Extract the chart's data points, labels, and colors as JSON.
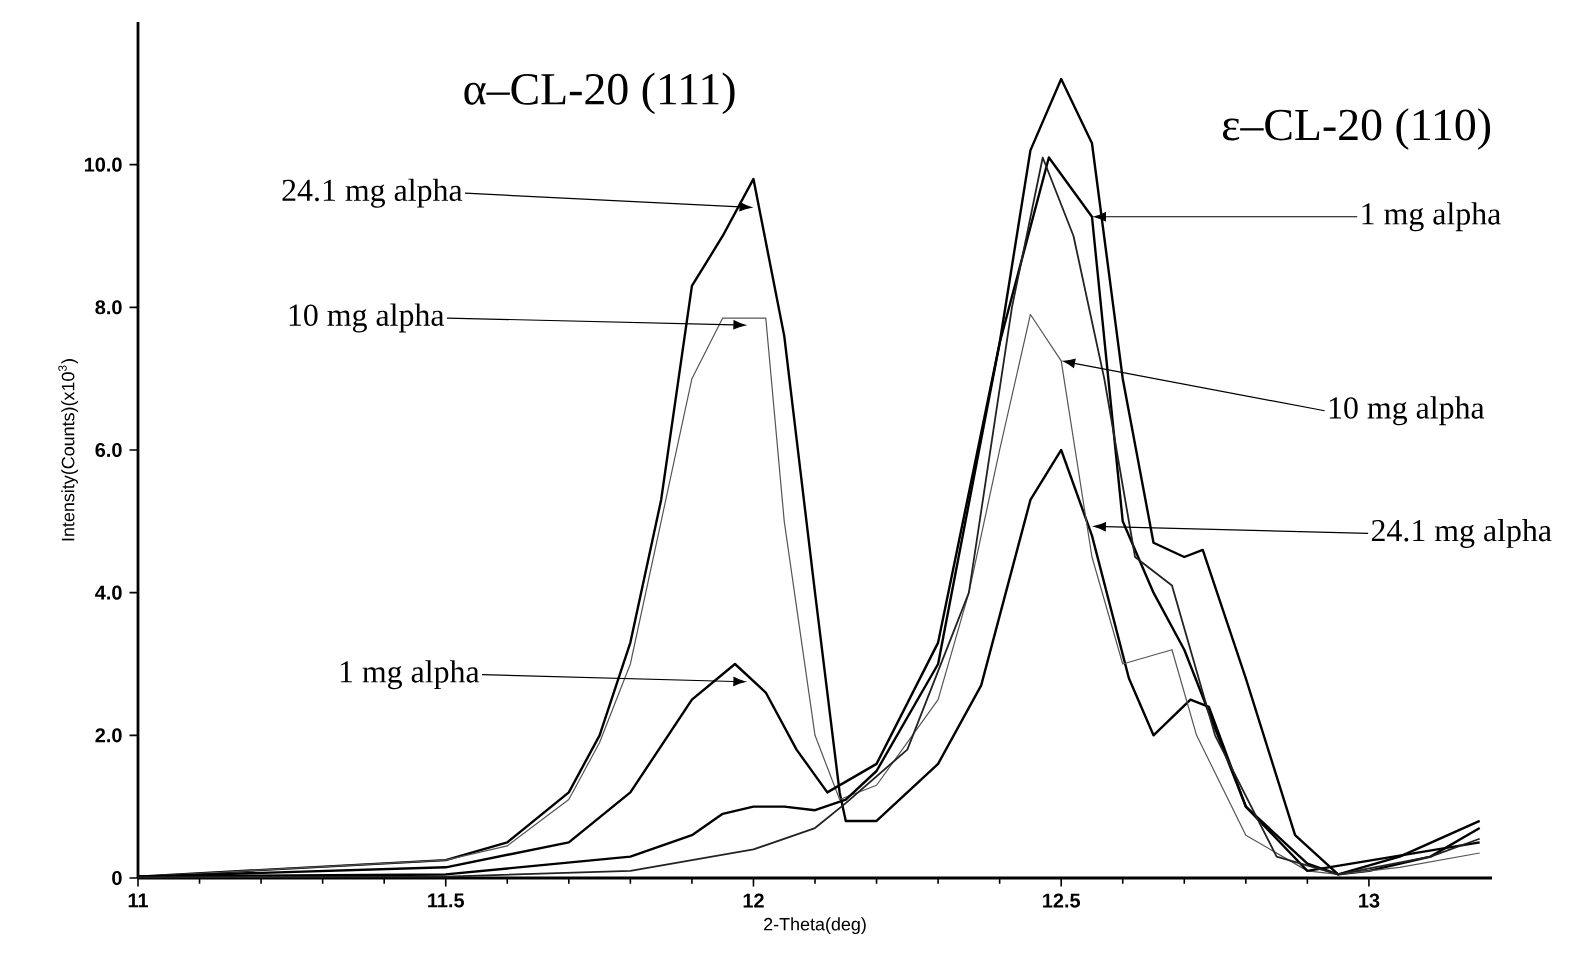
{
  "chart_data": {
    "type": "line",
    "xlabel": "2-Theta(deg)",
    "ylabel": "Intensity(Counts)(x10$^{3}$)",
    "xlim": [
      11,
      13.2
    ],
    "ylim": [
      0,
      12
    ],
    "xticks": [
      11,
      11.5,
      12,
      12.5,
      13
    ],
    "yticks": [
      {
        "value": 0,
        "label": "0"
      },
      {
        "value": 2,
        "label": "2.0"
      },
      {
        "value": 4,
        "label": "4.0"
      },
      {
        "value": 6,
        "label": "6.0"
      },
      {
        "value": 8,
        "label": "8.0"
      },
      {
        "value": 10,
        "label": "10.0"
      }
    ],
    "marker": "none",
    "line_style": "solid",
    "series": [
      {
        "color": "#000000",
        "x": [
          11.0,
          11.5,
          11.6,
          11.7,
          11.75,
          11.8,
          11.85,
          11.9,
          11.95,
          12.0,
          12.05,
          12.1,
          12.14,
          12.15,
          12.2,
          12.3,
          12.37,
          12.45,
          12.5,
          12.55,
          12.61,
          12.65,
          12.71,
          12.74,
          12.8,
          12.9,
          12.95,
          13.0,
          13.1,
          13.18
        ],
        "values": [
          0.02,
          0.25,
          0.5,
          1.2,
          2.0,
          3.3,
          5.3,
          8.3,
          9.0,
          9.8,
          7.6,
          4.0,
          1.2,
          0.8,
          0.8,
          1.6,
          2.7,
          5.3,
          6.0,
          4.8,
          2.8,
          2.0,
          2.5,
          2.4,
          1.0,
          0.2,
          0.05,
          0.1,
          0.3,
          0.7
        ]
      },
      {
        "color": "#555555",
        "x": [
          11.0,
          11.5,
          11.6,
          11.7,
          11.75,
          11.8,
          11.85,
          11.9,
          11.95,
          12.02,
          12.05,
          12.1,
          12.14,
          12.2,
          12.3,
          12.35,
          12.4,
          12.45,
          12.5,
          12.55,
          12.6,
          12.68,
          12.72,
          12.8,
          12.9,
          12.95,
          13.05,
          13.18
        ],
        "values": [
          0.02,
          0.25,
          0.45,
          1.1,
          1.9,
          3.0,
          5.0,
          7.0,
          7.85,
          7.85,
          5.0,
          2.0,
          1.1,
          1.3,
          2.5,
          4.0,
          6.0,
          7.9,
          7.25,
          4.5,
          3.0,
          3.2,
          2.0,
          0.6,
          0.1,
          0.05,
          0.15,
          0.35
        ]
      },
      {
        "color": "#000000",
        "x": [
          11.0,
          11.5,
          11.7,
          11.8,
          11.9,
          11.97,
          12.02,
          12.07,
          12.12,
          12.2,
          12.3,
          12.4,
          12.48,
          12.55,
          12.6,
          12.65,
          12.7,
          12.8,
          12.9,
          13.18
        ],
        "values": [
          0.02,
          0.15,
          0.5,
          1.2,
          2.5,
          3.0,
          2.6,
          1.8,
          1.2,
          1.6,
          3.3,
          7.5,
          10.1,
          9.27,
          5.0,
          4.0,
          3.2,
          1.0,
          0.1,
          0.5
        ]
      },
      {
        "color": "#000000",
        "x": [
          11.0,
          11.5,
          11.8,
          11.9,
          11.95,
          12.0,
          12.05,
          12.1,
          12.15,
          12.2,
          12.3,
          12.4,
          12.45,
          12.5,
          12.55,
          12.6,
          12.65,
          12.7,
          12.73,
          12.8,
          12.88,
          12.95,
          13.05,
          13.18
        ],
        "values": [
          0.02,
          0.05,
          0.3,
          0.6,
          0.9,
          1.0,
          1.0,
          0.95,
          1.1,
          1.5,
          3.0,
          7.5,
          10.2,
          11.2,
          10.3,
          7.0,
          4.7,
          4.5,
          4.6,
          2.8,
          0.6,
          0.05,
          0.3,
          0.8
        ]
      },
      {
        "color": "#222222",
        "x": [
          11.0,
          11.5,
          11.8,
          11.9,
          12.0,
          12.05,
          12.1,
          12.15,
          12.25,
          12.35,
          12.42,
          12.47,
          12.52,
          12.57,
          12.62,
          12.68,
          12.75,
          12.85,
          12.95,
          13.1,
          13.18
        ],
        "values": [
          0.01,
          0.02,
          0.1,
          0.25,
          0.4,
          0.55,
          0.7,
          1.05,
          1.8,
          4.0,
          8.0,
          10.1,
          9.0,
          7.0,
          4.5,
          4.1,
          2.0,
          0.3,
          0.05,
          0.3,
          0.55
        ]
      }
    ],
    "annotations": [
      "α–CL-20 (111)",
      "ε–CL-20 (110)",
      {
        "text": "24.1 mg alpha",
        "x": 12.0,
        "y": 9.4
      },
      {
        "text": "10 mg alpha",
        "x": 11.99,
        "y": 7.75
      },
      {
        "text": "1 mg alpha",
        "x": 11.99,
        "y": 2.75
      },
      {
        "text": "1 mg alpha",
        "x": 12.55,
        "y": 9.27
      },
      {
        "text": "10 mg alpha",
        "x": 12.5,
        "y": 7.25
      },
      {
        "text": "24.1 mg alpha",
        "x": 12.55,
        "y": 4.93
      }
    ]
  }
}
